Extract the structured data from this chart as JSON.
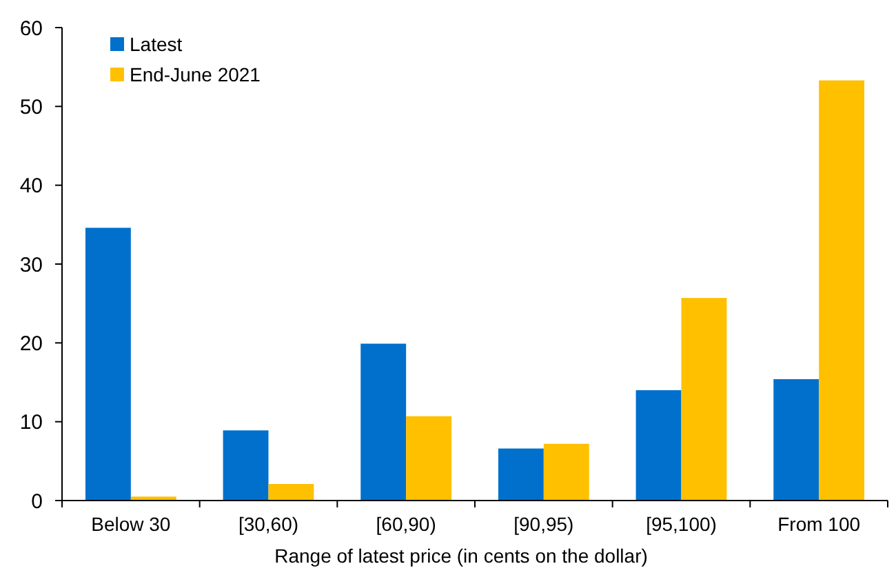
{
  "chart_data": {
    "type": "bar",
    "xlabel": "Range of latest price (in cents on the dollar)",
    "categories": [
      "Below 30",
      "[30,60)",
      "[60,90)",
      "[90,95)",
      "[95,100)",
      "From 100"
    ],
    "series": [
      {
        "name": "Latest",
        "color": "#0070cc",
        "values": [
          34.6,
          8.9,
          19.9,
          6.6,
          14.0,
          15.4
        ]
      },
      {
        "name": "End-June 2021",
        "color": "#ffc000",
        "values": [
          0.5,
          2.1,
          10.7,
          7.2,
          25.7,
          53.3
        ]
      }
    ],
    "ylim": [
      0,
      60
    ],
    "yticks": [
      0,
      10,
      20,
      30,
      40,
      50,
      60
    ],
    "grid": false,
    "legend": "top left"
  }
}
